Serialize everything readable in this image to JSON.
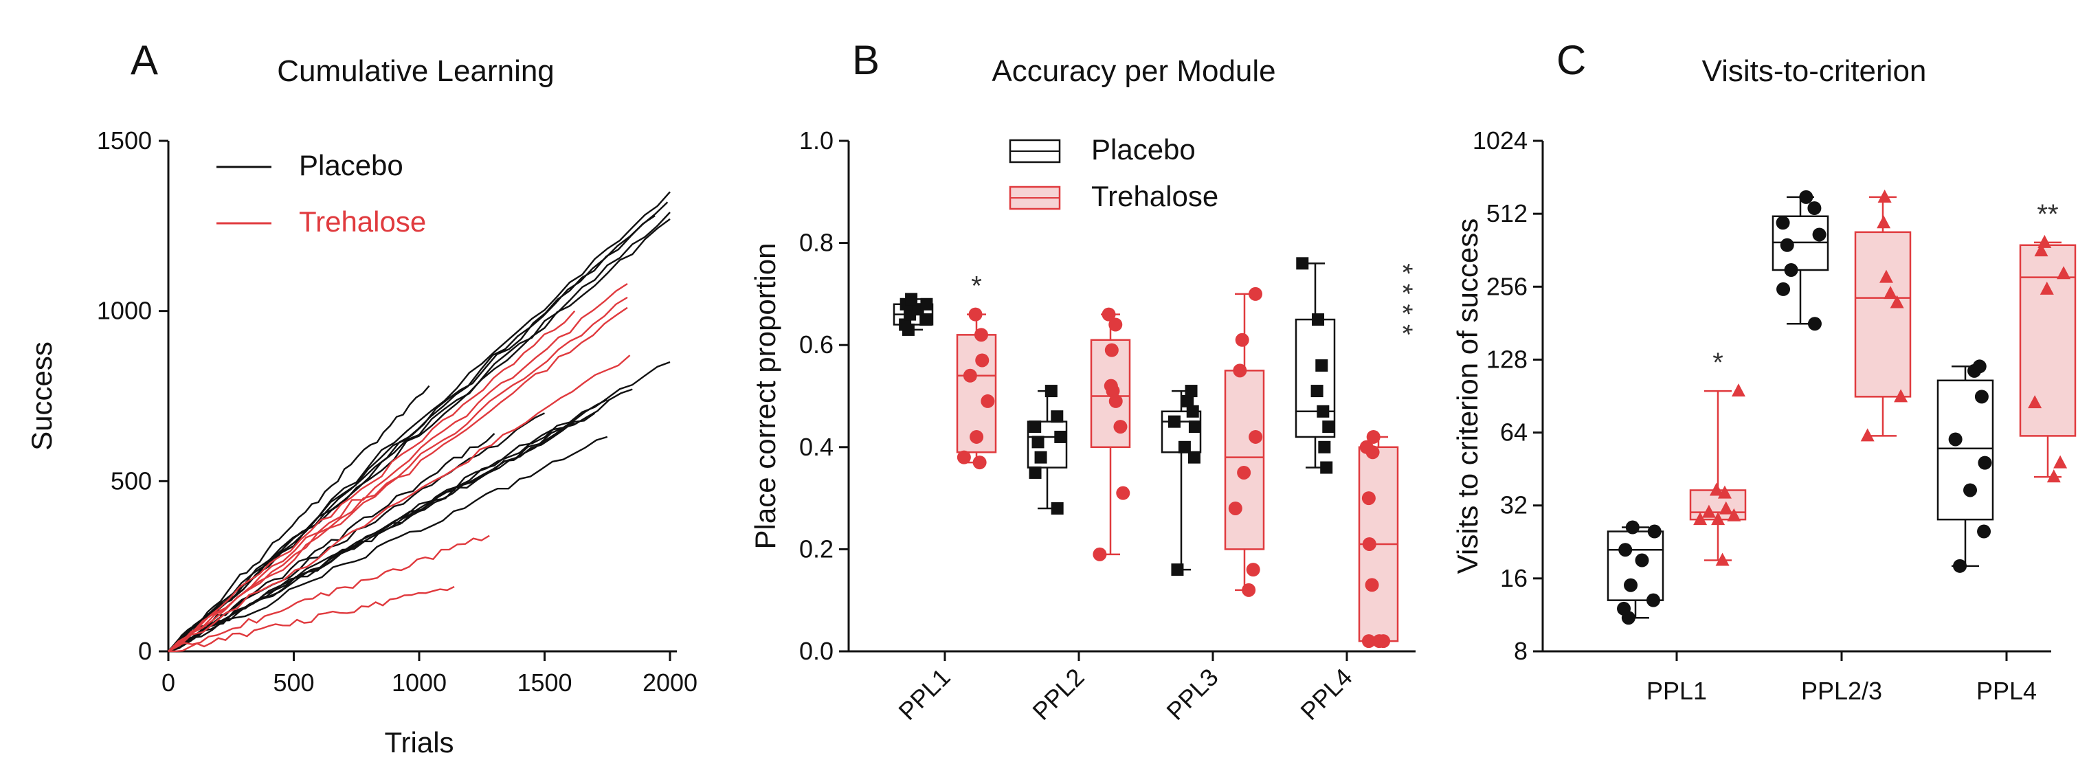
{
  "colors": {
    "placebo": "#111111",
    "trehalose": "#e03a3e",
    "trehalose_fill": "#f6d3d4"
  },
  "chart_data": [
    {
      "panel": "A",
      "type": "line",
      "title": "Cumulative Learning",
      "xlabel": "Trials",
      "ylabel": "Success",
      "xlim": [
        0,
        2000
      ],
      "ylim": [
        0,
        1500
      ],
      "xticks": [
        "0",
        "500",
        "1000",
        "1500",
        "2000"
      ],
      "yticks": [
        "0",
        "500",
        "1000",
        "1500"
      ],
      "legend": [
        "Placebo",
        "Trehalose"
      ],
      "legend_position": "top-left",
      "series": [
        {
          "name": "Placebo",
          "color": "#111111",
          "end_points": [
            [
              2000,
              1350
            ],
            [
              1990,
              1320
            ],
            [
              2000,
              1290
            ],
            [
              2000,
              1270
            ],
            [
              1940,
              1280
            ],
            [
              1040,
              780
            ],
            [
              2000,
              850
            ],
            [
              1750,
              740
            ],
            [
              1700,
              700
            ],
            [
              1620,
              670
            ],
            [
              1750,
              630
            ],
            [
              1300,
              640
            ],
            [
              1500,
              700
            ],
            [
              1850,
              770
            ]
          ]
        },
        {
          "name": "Trehalose",
          "color": "#e03a3e",
          "end_points": [
            [
              1830,
              1080
            ],
            [
              1830,
              1040
            ],
            [
              1830,
              1010
            ],
            [
              1620,
              1000
            ],
            [
              1840,
              870
            ],
            [
              1280,
              340
            ],
            [
              1140,
              190
            ]
          ]
        }
      ]
    },
    {
      "panel": "B",
      "type": "box",
      "title": "Accuracy per Module",
      "xlabel": "",
      "ylabel": "Place correct proportion",
      "ylim": [
        0,
        1.0
      ],
      "yticks": [
        "0.0",
        "0.2",
        "0.4",
        "0.6",
        "0.8",
        "1.0"
      ],
      "categories": [
        "PPL1",
        "PPL2",
        "PPL3",
        "PPL4"
      ],
      "legend": [
        "Placebo",
        "Trehalose"
      ],
      "legend_position": "top-center",
      "annotations": [
        "*",
        "",
        "",
        "****"
      ],
      "series": [
        {
          "name": "Placebo",
          "boxes": [
            {
              "min": 0.63,
              "q1": 0.64,
              "median": 0.66,
              "q3": 0.68,
              "max": 0.69,
              "points": [
                0.63,
                0.64,
                0.65,
                0.66,
                0.67,
                0.68,
                0.68,
                0.69
              ]
            },
            {
              "min": 0.28,
              "q1": 0.36,
              "median": 0.42,
              "q3": 0.45,
              "max": 0.51,
              "points": [
                0.28,
                0.35,
                0.38,
                0.41,
                0.42,
                0.44,
                0.46,
                0.51
              ]
            },
            {
              "min": 0.16,
              "q1": 0.39,
              "median": 0.45,
              "q3": 0.47,
              "max": 0.51,
              "points": [
                0.16,
                0.38,
                0.4,
                0.44,
                0.45,
                0.47,
                0.49,
                0.51
              ]
            },
            {
              "min": 0.36,
              "q1": 0.42,
              "median": 0.47,
              "q3": 0.65,
              "max": 0.76,
              "points": [
                0.36,
                0.4,
                0.44,
                0.47,
                0.51,
                0.56,
                0.65,
                0.76
              ]
            }
          ]
        },
        {
          "name": "Trehalose",
          "boxes": [
            {
              "min": 0.37,
              "q1": 0.39,
              "median": 0.54,
              "q3": 0.62,
              "max": 0.66,
              "points": [
                0.37,
                0.38,
                0.42,
                0.49,
                0.54,
                0.57,
                0.62,
                0.66
              ]
            },
            {
              "min": 0.19,
              "q1": 0.4,
              "median": 0.5,
              "q3": 0.61,
              "max": 0.66,
              "points": [
                0.19,
                0.31,
                0.44,
                0.49,
                0.51,
                0.52,
                0.59,
                0.64,
                0.66
              ]
            },
            {
              "min": 0.12,
              "q1": 0.2,
              "median": 0.38,
              "q3": 0.55,
              "max": 0.7,
              "points": [
                0.12,
                0.16,
                0.28,
                0.35,
                0.42,
                0.55,
                0.61,
                0.7
              ]
            },
            {
              "min": 0.02,
              "q1": 0.02,
              "median": 0.21,
              "q3": 0.4,
              "max": 0.42,
              "points": [
                0.02,
                0.02,
                0.02,
                0.13,
                0.21,
                0.3,
                0.39,
                0.4,
                0.42
              ]
            }
          ]
        }
      ]
    },
    {
      "panel": "C",
      "type": "box",
      "title": "Visits-to-criterion",
      "xlabel": "",
      "ylabel": "Visits to criterion of success",
      "yscale": "log2",
      "ylim": [
        8,
        1024
      ],
      "yticks": [
        "8",
        "16",
        "32",
        "64",
        "128",
        "256",
        "512",
        "1024"
      ],
      "categories": [
        "PPL1",
        "PPL2/3",
        "PPL4"
      ],
      "annotations": [
        "*",
        "",
        "**"
      ],
      "series": [
        {
          "name": "Placebo",
          "boxes": [
            {
              "min": 11,
              "q1": 13,
              "median": 21,
              "q3": 25,
              "max": 26,
              "points": [
                11,
                12,
                13,
                15,
                19,
                21,
                25,
                26
              ]
            },
            {
              "min": 180,
              "q1": 300,
              "median": 390,
              "q3": 500,
              "max": 600,
              "points": [
                180,
                250,
                300,
                380,
                420,
                470,
                540,
                600
              ]
            },
            {
              "min": 18,
              "q1": 28,
              "median": 55,
              "q3": 105,
              "max": 120,
              "points": [
                18,
                25,
                37,
                48,
                60,
                90,
                115,
                120
              ]
            }
          ]
        },
        {
          "name": "Trehalose",
          "boxes": [
            {
              "min": 19,
              "q1": 28,
              "median": 30,
              "q3": 37,
              "max": 95,
              "points": [
                19,
                28,
                28,
                29,
                30,
                31,
                36,
                37,
                95
              ]
            },
            {
              "min": 62,
              "q1": 90,
              "median": 230,
              "q3": 430,
              "max": 600,
              "points": [
                62,
                90,
                220,
                240,
                280,
                470,
                600
              ]
            },
            {
              "min": 42,
              "q1": 62,
              "median": 280,
              "q3": 380,
              "max": 390,
              "points": [
                42,
                48,
                85,
                250,
                290,
                360,
                390
              ]
            }
          ]
        }
      ]
    }
  ]
}
